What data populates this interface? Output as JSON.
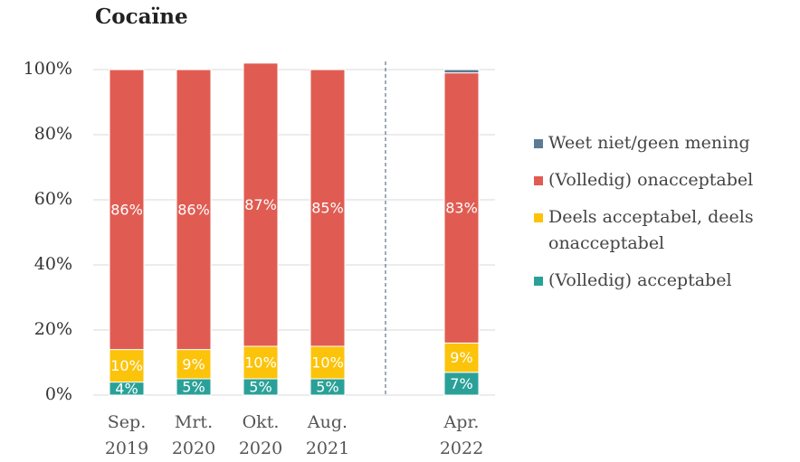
{
  "chart_data": {
    "type": "stacked_bar",
    "title": "Cocaïne",
    "categories": [
      "Sep. 2019",
      "Mrt. 2020",
      "Okt. 2020",
      "Aug. 2021",
      null,
      "Apr. 2022"
    ],
    "series": [
      {
        "name": "(Volledig) acceptabel",
        "color": "#2aa198",
        "values": [
          4,
          5,
          5,
          5,
          null,
          7
        ],
        "value_labels": [
          "4%",
          "5%",
          "5%",
          "5%",
          null,
          "7%"
        ]
      },
      {
        "name": "Deels acceptabel, deels onacceptabel",
        "color": "#fcc30b",
        "values": [
          10,
          9,
          10,
          10,
          null,
          9
        ],
        "value_labels": [
          "10%",
          "9%",
          "10%",
          "10%",
          null,
          "9%"
        ]
      },
      {
        "name": "(Volledig) onacceptabel",
        "color": "#e05c52",
        "values": [
          86,
          86,
          87,
          85,
          null,
          83
        ],
        "value_labels": [
          "86%",
          "86%",
          "87%",
          "85%",
          null,
          "83%"
        ]
      },
      {
        "name": "Weet niet/geen mening",
        "color": "#5b7b94",
        "values": [
          0,
          0,
          0,
          0,
          null,
          1
        ]
      }
    ],
    "ylim": [
      0,
      100
    ],
    "yticks": [
      {
        "value": 0,
        "label": "0%"
      },
      {
        "value": 20,
        "label": "20%"
      },
      {
        "value": 40,
        "label": "40%"
      },
      {
        "value": 60,
        "label": "60%"
      },
      {
        "value": 80,
        "label": "80%"
      },
      {
        "value": 100,
        "label": "100%"
      }
    ],
    "grid": true
  }
}
